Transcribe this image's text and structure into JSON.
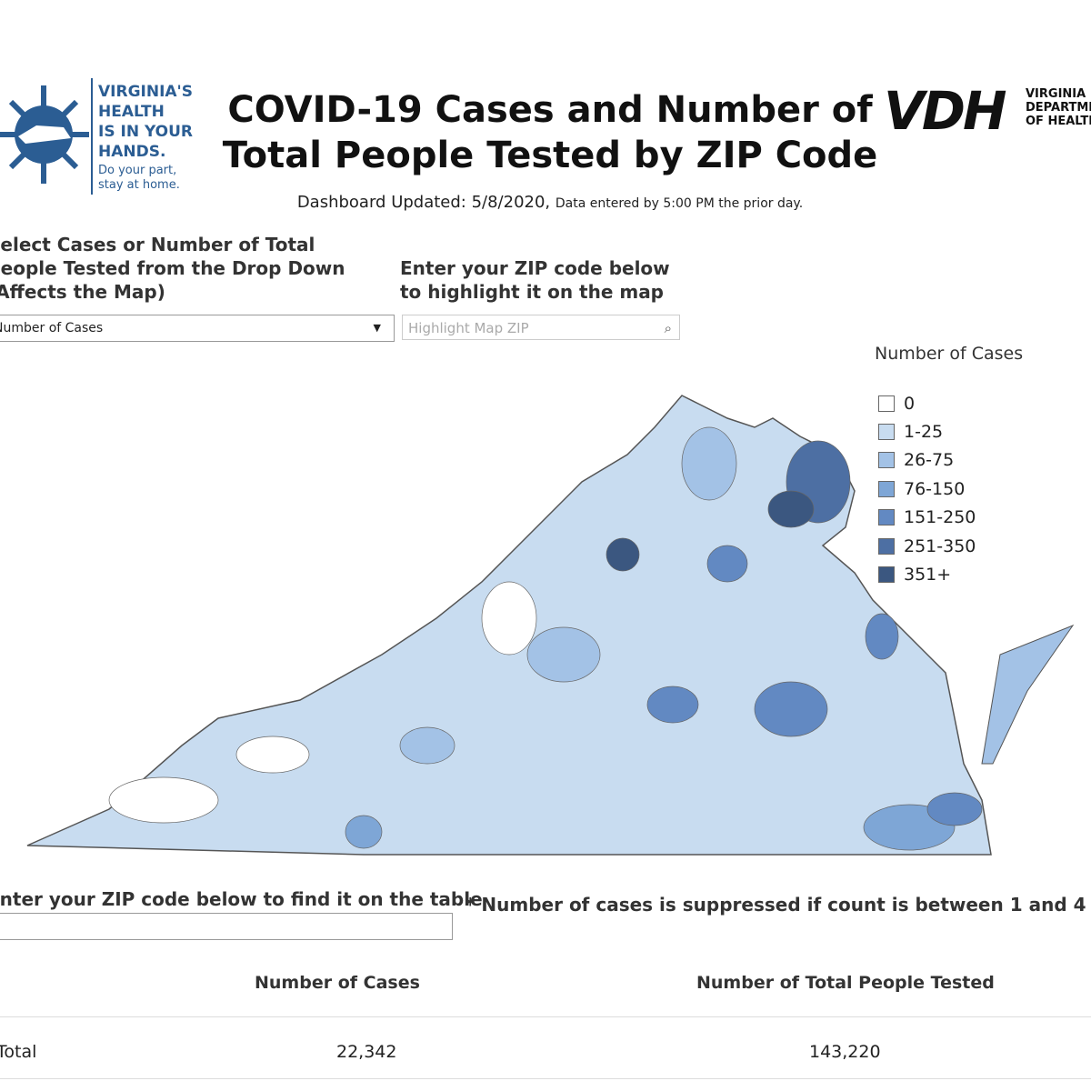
{
  "header": {
    "logo_left": {
      "lines": [
        "VIRGINIA'S",
        "HEALTH",
        "IS IN YOUR",
        "HANDS."
      ],
      "tagline": [
        "Do your part,",
        "stay at home."
      ]
    },
    "title": [
      "COVID-19 Cases and Number of",
      "Total People Tested by ZIP Code"
    ],
    "updated": "Dashboard Updated: 5/8/2020,",
    "updated_note": "Data entered by 5:00 PM the prior day.",
    "logo_right": {
      "mark": "VDH",
      "lines": [
        "VIRGINIA",
        "DEPARTMENT",
        "OF HEALTH"
      ]
    }
  },
  "controls": {
    "measure_label": [
      "Select Cases or Number of Total",
      "People Tested from the Drop Down",
      "(Affects the Map)"
    ],
    "measure_value": "Number of Cases",
    "zip_label": [
      "Enter your ZIP code below",
      "to highlight it on the map"
    ],
    "zip_placeholder": "Highlight Map ZIP"
  },
  "legend": {
    "title": "Number of Cases",
    "items": [
      {
        "label": "0",
        "color": "#ffffff"
      },
      {
        "label": "1-25",
        "color": "#c8dcf0"
      },
      {
        "label": "26-75",
        "color": "#a3c2e6"
      },
      {
        "label": "76-150",
        "color": "#7ea6d6"
      },
      {
        "label": "151-250",
        "color": "#6289c2"
      },
      {
        "label": "251-350",
        "color": "#4d6fa3"
      },
      {
        "label": "351+",
        "color": "#3b5780"
      }
    ]
  },
  "table_search": {
    "label": "Enter your ZIP code below to find it on the table"
  },
  "note": "* Number of cases is suppressed if count is between 1 and 4",
  "table": {
    "headers": [
      "Number of Cases",
      "Number of Total People Tested"
    ],
    "rows": [
      [
        "Total",
        "22,342",
        "143,220"
      ]
    ]
  }
}
